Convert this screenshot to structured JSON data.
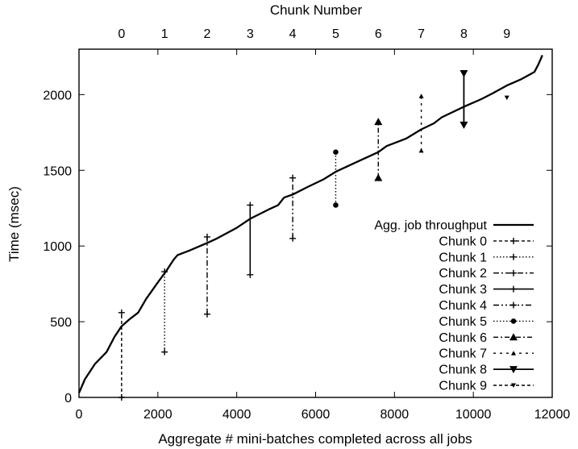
{
  "chart_data": {
    "type": "line",
    "xlabel": "Aggregate # mini-batches completed across all jobs",
    "ylabel": "Time (msec)",
    "x2label": "Chunk Number",
    "xlim": [
      0,
      12000
    ],
    "ylim": [
      0,
      2300
    ],
    "x_ticks": [
      0,
      2000,
      4000,
      6000,
      8000,
      10000,
      12000
    ],
    "y_ticks": [
      0,
      500,
      1000,
      1500,
      2000
    ],
    "x2_ticks": [
      {
        "label": "0",
        "x": 1080
      },
      {
        "label": "1",
        "x": 2170
      },
      {
        "label": "2",
        "x": 3250
      },
      {
        "label": "3",
        "x": 4340
      },
      {
        "label": "4",
        "x": 5420
      },
      {
        "label": "5",
        "x": 6510
      },
      {
        "label": "6",
        "x": 7590
      },
      {
        "label": "7",
        "x": 8680
      },
      {
        "label": "8",
        "x": 9760
      },
      {
        "label": "9",
        "x": 10850
      }
    ],
    "grid": false,
    "legend_position": "bottom-right",
    "throughput": {
      "name": "Agg. job throughput",
      "points": [
        [
          0,
          30
        ],
        [
          150,
          120
        ],
        [
          400,
          220
        ],
        [
          700,
          300
        ],
        [
          900,
          400
        ],
        [
          1080,
          470
        ],
        [
          1300,
          520
        ],
        [
          1500,
          560
        ],
        [
          1700,
          650
        ],
        [
          2000,
          760
        ],
        [
          2200,
          830
        ],
        [
          2400,
          910
        ],
        [
          2500,
          940
        ],
        [
          2800,
          970
        ],
        [
          3250,
          1020
        ],
        [
          3500,
          1050
        ],
        [
          4000,
          1120
        ],
        [
          4340,
          1180
        ],
        [
          4800,
          1240
        ],
        [
          5050,
          1270
        ],
        [
          5200,
          1320
        ],
        [
          5420,
          1340
        ],
        [
          5800,
          1390
        ],
        [
          6200,
          1440
        ],
        [
          6510,
          1490
        ],
        [
          7000,
          1550
        ],
        [
          7590,
          1620
        ],
        [
          7800,
          1660
        ],
        [
          8300,
          1710
        ],
        [
          8680,
          1770
        ],
        [
          9000,
          1810
        ],
        [
          9200,
          1850
        ],
        [
          9760,
          1920
        ],
        [
          10200,
          1970
        ],
        [
          10500,
          2010
        ],
        [
          10850,
          2060
        ],
        [
          11200,
          2100
        ],
        [
          11550,
          2150
        ],
        [
          11650,
          2200
        ],
        [
          11750,
          2260
        ]
      ]
    },
    "series": [
      {
        "name": "Chunk 0",
        "x": 1080,
        "low": 0,
        "high": 560,
        "marker": "plus",
        "dash": "dashed"
      },
      {
        "name": "Chunk 1",
        "x": 2170,
        "low": 300,
        "high": 830,
        "marker": "plus",
        "dash": "dotted"
      },
      {
        "name": "Chunk 2",
        "x": 3250,
        "low": 550,
        "high": 1060,
        "marker": "plus",
        "dash": "dashdot"
      },
      {
        "name": "Chunk 3",
        "x": 4340,
        "low": 810,
        "high": 1270,
        "marker": "plus",
        "dash": "solid"
      },
      {
        "name": "Chunk 4",
        "x": 5420,
        "low": 1050,
        "high": 1450,
        "marker": "plus",
        "dash": "dashdotdot"
      },
      {
        "name": "Chunk 5",
        "x": 6510,
        "low": 1270,
        "high": 1620,
        "marker": "circle",
        "dash": "dotted2"
      },
      {
        "name": "Chunk 6",
        "x": 7590,
        "low": 1450,
        "high": 1820,
        "marker": "triangle",
        "dash": "dashdot2"
      },
      {
        "name": "Chunk 7",
        "x": 8680,
        "low": 1630,
        "high": 1990,
        "marker": "triangle-small",
        "dash": "sparse"
      },
      {
        "name": "Chunk 8",
        "x": 9760,
        "low": 1800,
        "high": 2140,
        "marker": "triangle-down",
        "dash": "solid"
      },
      {
        "name": "Chunk 9",
        "x": 10850,
        "low": 1980,
        "high": 1980,
        "marker": "triangle-down-small",
        "dash": "dashed"
      }
    ]
  }
}
